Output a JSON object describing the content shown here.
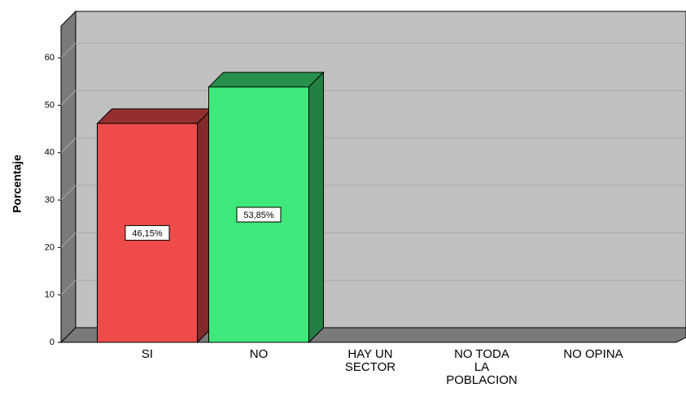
{
  "chart_data": {
    "type": "bar3d",
    "y_label": "Porcentaje",
    "categories": [
      "SI",
      "NO",
      "HAY UN\nSECTOR",
      "NO TODA\nLA\nPOBLACION",
      "NO OPINA"
    ],
    "values": [
      46.15,
      53.85,
      0,
      0,
      0
    ],
    "value_labels": [
      "46,15%",
      "53,85%",
      null,
      null,
      null
    ],
    "colors": [
      "#ef4b4b",
      "#3fe87a",
      "#3f7fe8",
      "#e8c83f",
      "#b04fe8"
    ],
    "ylim": [
      0,
      66.7
    ],
    "yticks": [
      0,
      10,
      20,
      30,
      40,
      50,
      60
    ],
    "grid": true
  }
}
